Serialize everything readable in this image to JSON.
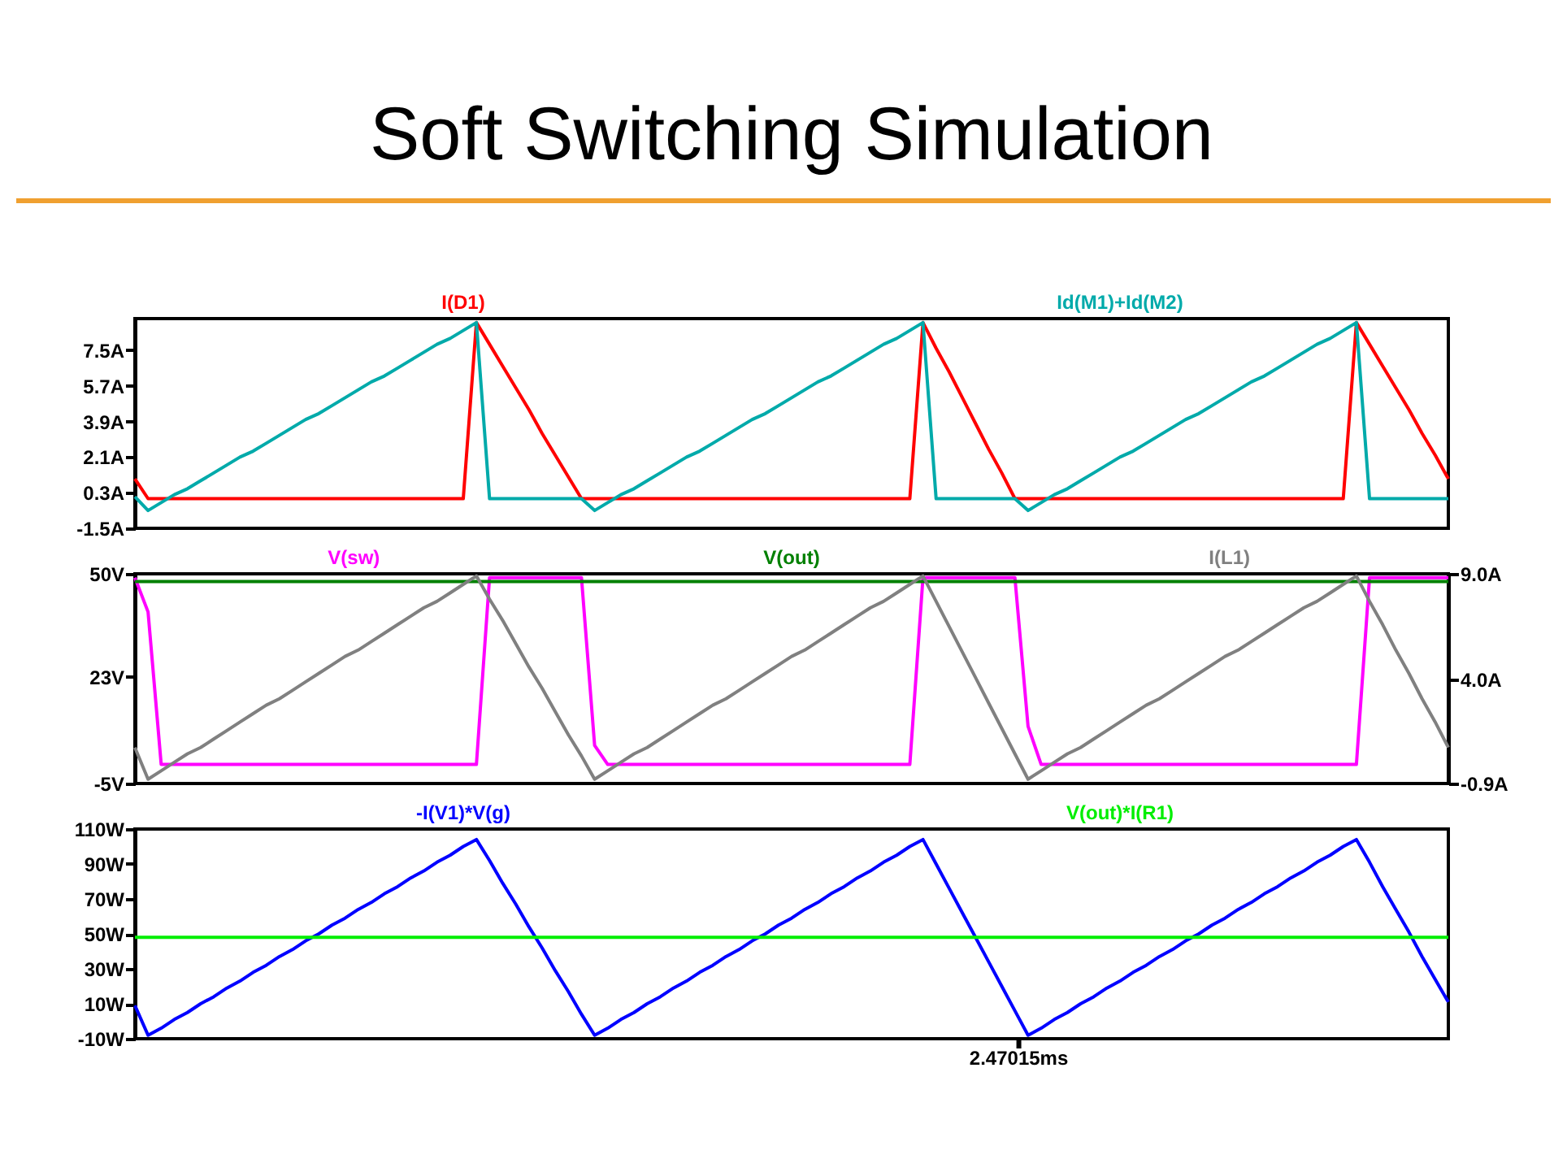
{
  "chart_data": [
    {
      "type": "line",
      "title": "Soft Switching Simulation",
      "legend": "top",
      "categories": [
        null,
        null,
        null,
        null,
        null,
        null,
        null,
        null,
        null,
        null,
        null,
        null,
        null,
        null,
        null,
        null,
        null,
        null,
        null,
        null,
        null,
        null,
        null,
        null,
        null,
        null,
        null,
        null,
        null,
        null,
        null,
        null,
        null,
        null,
        null,
        null,
        null,
        null,
        null,
        null,
        null,
        null,
        null,
        null,
        null,
        null,
        null,
        null,
        null,
        null,
        null,
        null,
        null,
        null,
        null,
        null,
        null,
        null,
        null,
        null,
        null,
        null,
        null,
        null,
        null,
        null,
        null,
        null,
        null,
        null,
        null,
        null,
        null,
        null,
        null,
        null,
        null,
        null,
        null,
        null,
        null,
        null,
        null,
        null,
        null,
        null,
        null,
        null,
        null,
        null,
        null,
        null,
        null,
        null,
        null,
        null,
        null,
        null,
        null,
        null,
        null
      ],
      "ylim": [
        -1.5,
        9.1
      ],
      "yticks": [
        {
          "value": -1.5,
          "label": "-1.5A"
        },
        {
          "value": 0.3,
          "label": "0.3A"
        },
        {
          "value": 2.1,
          "label": "2.1A"
        },
        {
          "value": 3.9,
          "label": "3.9A"
        },
        {
          "value": 5.7,
          "label": "5.7A"
        },
        {
          "value": 7.5,
          "label": "7.5A"
        }
      ],
      "series": [
        {
          "name": "I(D1)",
          "color": "#ff0000",
          "values": [
            1.0,
            0,
            0,
            0,
            0,
            0,
            0,
            0,
            0,
            0,
            0,
            0,
            0,
            0,
            0,
            0,
            0,
            0,
            0,
            0,
            0,
            0,
            0,
            0,
            0,
            0,
            8.9,
            7.8,
            6.7,
            5.6,
            4.5,
            3.3,
            2.2,
            1.1,
            0,
            0,
            0,
            0,
            0,
            0,
            0,
            0,
            0,
            0,
            0,
            0,
            0,
            0,
            0,
            0,
            0,
            0,
            0,
            0,
            0,
            0,
            0,
            0,
            0,
            0,
            8.9,
            7.6,
            6.4,
            5.1,
            3.8,
            2.5,
            1.3,
            0,
            0,
            0,
            0,
            0,
            0,
            0,
            0,
            0,
            0,
            0,
            0,
            0,
            0,
            0,
            0,
            0,
            0,
            0,
            0,
            0,
            0,
            0,
            0,
            0,
            0,
            8.9,
            7.8,
            6.7,
            5.6,
            4.5,
            3.3,
            2.2,
            1.0
          ]
        },
        {
          "name": "Id(M1)+Id(M2)",
          "color": "#00aaaa",
          "values": [
            0.1,
            -0.6,
            -0.2,
            0.2,
            0.5,
            0.9,
            1.3,
            1.7,
            2.1,
            2.4,
            2.8,
            3.2,
            3.6,
            4.0,
            4.3,
            4.7,
            5.1,
            5.5,
            5.9,
            6.2,
            6.6,
            7.0,
            7.4,
            7.8,
            8.1,
            8.5,
            8.9,
            0,
            0,
            0,
            0,
            0,
            0,
            0,
            0,
            -0.6,
            -0.2,
            0.2,
            0.5,
            0.9,
            1.3,
            1.7,
            2.1,
            2.4,
            2.8,
            3.2,
            3.6,
            4.0,
            4.3,
            4.7,
            5.1,
            5.5,
            5.9,
            6.2,
            6.6,
            7.0,
            7.4,
            7.8,
            8.1,
            8.5,
            8.9,
            0,
            0,
            0,
            0,
            0,
            0,
            0,
            -0.6,
            -0.2,
            0.2,
            0.5,
            0.9,
            1.3,
            1.7,
            2.1,
            2.4,
            2.8,
            3.2,
            3.6,
            4.0,
            4.3,
            4.7,
            5.1,
            5.5,
            5.9,
            6.2,
            6.6,
            7.0,
            7.4,
            7.8,
            8.1,
            8.5,
            8.9,
            0,
            0,
            0,
            0,
            0,
            0,
            0
          ]
        }
      ]
    },
    {
      "type": "line",
      "legend": "top",
      "categories": [
        null,
        null,
        null,
        null,
        null,
        null,
        null,
        null,
        null,
        null,
        null,
        null,
        null,
        null,
        null,
        null,
        null,
        null,
        null,
        null,
        null,
        null,
        null,
        null,
        null,
        null,
        null,
        null,
        null,
        null,
        null,
        null,
        null,
        null,
        null,
        null,
        null,
        null,
        null,
        null,
        null,
        null,
        null,
        null,
        null,
        null,
        null,
        null,
        null,
        null,
        null,
        null,
        null,
        null,
        null,
        null,
        null,
        null,
        null,
        null,
        null,
        null,
        null,
        null,
        null,
        null,
        null,
        null,
        null,
        null,
        null,
        null,
        null,
        null,
        null,
        null,
        null,
        null,
        null,
        null,
        null,
        null,
        null,
        null,
        null,
        null,
        null,
        null,
        null,
        null,
        null,
        null,
        null,
        null,
        null,
        null,
        null,
        null,
        null,
        null,
        null
      ],
      "ylim": [
        -5,
        50
      ],
      "yticks": [
        {
          "value": -5,
          "label": "-5V"
        },
        {
          "value": 23,
          "label": "23V"
        },
        {
          "value": 50,
          "label": "50V"
        }
      ],
      "y2lim": [
        -0.9,
        9.0
      ],
      "y2ticks": [
        {
          "value": -0.9,
          "label": "-0.9A"
        },
        {
          "value": 4.0,
          "label": "4.0A"
        },
        {
          "value": 9.0,
          "label": "9.0A"
        }
      ],
      "series": [
        {
          "name": "V(sw)",
          "color": "#ff00ff",
          "values": [
            49,
            40,
            0,
            0,
            0,
            0,
            0,
            0,
            0,
            0,
            0,
            0,
            0,
            0,
            0,
            0,
            0,
            0,
            0,
            0,
            0,
            0,
            0,
            0,
            0,
            0,
            0,
            49,
            49,
            49,
            49,
            49,
            49,
            49,
            49,
            5,
            0,
            0,
            0,
            0,
            0,
            0,
            0,
            0,
            0,
            0,
            0,
            0,
            0,
            0,
            0,
            0,
            0,
            0,
            0,
            0,
            0,
            0,
            0,
            0,
            49,
            49,
            49,
            49,
            49,
            49,
            49,
            49,
            10,
            0,
            0,
            0,
            0,
            0,
            0,
            0,
            0,
            0,
            0,
            0,
            0,
            0,
            0,
            0,
            0,
            0,
            0,
            0,
            0,
            0,
            0,
            0,
            0,
            0,
            49,
            49,
            49,
            49,
            49,
            49,
            49
          ]
        },
        {
          "name": "V(out)",
          "color": "#008000",
          "values": [
            48,
            48,
            48,
            48,
            48,
            48,
            48,
            48,
            48,
            48,
            48,
            48,
            48,
            48,
            48,
            48,
            48,
            48,
            48,
            48,
            48,
            48,
            48,
            48,
            48,
            48,
            48,
            48,
            48,
            48,
            48,
            48,
            48,
            48,
            48,
            48,
            48,
            48,
            48,
            48,
            48,
            48,
            48,
            48,
            48,
            48,
            48,
            48,
            48,
            48,
            48,
            48,
            48,
            48,
            48,
            48,
            48,
            48,
            48,
            48,
            48,
            48,
            48,
            48,
            48,
            48,
            48,
            48,
            48,
            48,
            48,
            48,
            48,
            48,
            48,
            48,
            48,
            48,
            48,
            48,
            48,
            48,
            48,
            48,
            48,
            48,
            48,
            48,
            48,
            48,
            48,
            48,
            48,
            48,
            48,
            48,
            48,
            48,
            48,
            48,
            48
          ]
        },
        {
          "name": "I(L1)",
          "color": "#808080",
          "axis": "y2",
          "values": [
            0.8,
            -0.7,
            -0.3,
            0.1,
            0.5,
            0.8,
            1.2,
            1.6,
            2.0,
            2.4,
            2.8,
            3.1,
            3.5,
            3.9,
            4.3,
            4.7,
            5.1,
            5.4,
            5.8,
            6.2,
            6.6,
            7.0,
            7.4,
            7.7,
            8.1,
            8.5,
            8.9,
            7.8,
            6.8,
            5.7,
            4.6,
            3.6,
            2.5,
            1.4,
            0.4,
            -0.7,
            -0.3,
            0.1,
            0.5,
            0.8,
            1.2,
            1.6,
            2.0,
            2.4,
            2.8,
            3.1,
            3.5,
            3.9,
            4.3,
            4.7,
            5.1,
            5.4,
            5.8,
            6.2,
            6.6,
            7.0,
            7.4,
            7.7,
            8.1,
            8.5,
            8.9,
            7.7,
            6.5,
            5.3,
            4.1,
            2.9,
            1.7,
            0.5,
            -0.7,
            -0.3,
            0.1,
            0.5,
            0.8,
            1.2,
            1.6,
            2.0,
            2.4,
            2.8,
            3.1,
            3.5,
            3.9,
            4.3,
            4.7,
            5.1,
            5.4,
            5.8,
            6.2,
            6.6,
            7.0,
            7.4,
            7.7,
            8.1,
            8.5,
            8.9,
            7.7,
            6.6,
            5.4,
            4.3,
            3.1,
            2.0,
            0.8
          ]
        }
      ]
    },
    {
      "type": "line",
      "legend": "top",
      "annotations": [
        "2.47015ms"
      ],
      "categories": [
        null,
        null,
        null,
        null,
        null,
        null,
        null,
        null,
        null,
        null,
        null,
        null,
        null,
        null,
        null,
        null,
        null,
        null,
        null,
        null,
        null,
        null,
        null,
        null,
        null,
        null,
        null,
        null,
        null,
        null,
        null,
        null,
        null,
        null,
        null,
        null,
        null,
        null,
        null,
        null,
        null,
        null,
        null,
        null,
        null,
        null,
        null,
        null,
        null,
        null,
        null,
        null,
        null,
        null,
        null,
        null,
        null,
        null,
        null,
        null,
        null,
        null,
        null,
        null,
        null,
        null,
        null,
        null,
        null,
        null,
        null,
        null,
        null,
        null,
        null,
        null,
        null,
        null,
        null,
        null,
        null,
        null,
        null,
        null,
        null,
        null,
        null,
        null,
        null,
        null,
        null,
        null,
        null,
        null,
        null,
        null,
        null,
        null,
        null,
        null,
        null
      ],
      "ylim": [
        -10,
        110
      ],
      "yticks": [
        {
          "value": -10,
          "label": "-10W"
        },
        {
          "value": 10,
          "label": "10W"
        },
        {
          "value": 30,
          "label": "30W"
        },
        {
          "value": 50,
          "label": "50W"
        },
        {
          "value": 70,
          "label": "70W"
        },
        {
          "value": 90,
          "label": "90W"
        },
        {
          "value": 110,
          "label": "110W"
        }
      ],
      "series": [
        {
          "name": "-I(V1)*V(g)",
          "color": "#0000ff",
          "values": [
            9,
            -8,
            -4,
            1,
            5,
            10,
            14,
            19,
            23,
            28,
            32,
            37,
            41,
            46,
            50,
            55,
            59,
            64,
            68,
            73,
            77,
            82,
            86,
            91,
            95,
            100,
            104,
            92,
            79,
            67,
            54,
            42,
            29,
            17,
            4,
            -8,
            -4,
            1,
            5,
            10,
            14,
            19,
            23,
            28,
            32,
            37,
            41,
            46,
            50,
            55,
            59,
            64,
            68,
            73,
            77,
            82,
            86,
            91,
            95,
            100,
            104,
            90,
            76,
            62,
            48,
            34,
            20,
            6,
            -8,
            -4,
            1,
            5,
            10,
            14,
            19,
            23,
            28,
            32,
            37,
            41,
            46,
            50,
            55,
            59,
            64,
            68,
            73,
            77,
            82,
            86,
            91,
            95,
            100,
            104,
            91,
            77,
            64,
            51,
            37,
            24,
            11
          ]
        },
        {
          "name": "V(out)*I(R1)",
          "color": "#00ee00",
          "values": [
            48,
            48,
            48,
            48,
            48,
            48,
            48,
            48,
            48,
            48,
            48,
            48,
            48,
            48,
            48,
            48,
            48,
            48,
            48,
            48,
            48,
            48,
            48,
            48,
            48,
            48,
            48,
            48,
            48,
            48,
            48,
            48,
            48,
            48,
            48,
            48,
            48,
            48,
            48,
            48,
            48,
            48,
            48,
            48,
            48,
            48,
            48,
            48,
            48,
            48,
            48,
            48,
            48,
            48,
            48,
            48,
            48,
            48,
            48,
            48,
            48,
            48,
            48,
            48,
            48,
            48,
            48,
            48,
            48,
            48,
            48,
            48,
            48,
            48,
            48,
            48,
            48,
            48,
            48,
            48,
            48,
            48,
            48,
            48,
            48,
            48,
            48,
            48,
            48,
            48,
            48,
            48,
            48,
            48,
            48,
            48,
            48,
            48,
            48,
            48,
            48
          ]
        }
      ]
    }
  ]
}
